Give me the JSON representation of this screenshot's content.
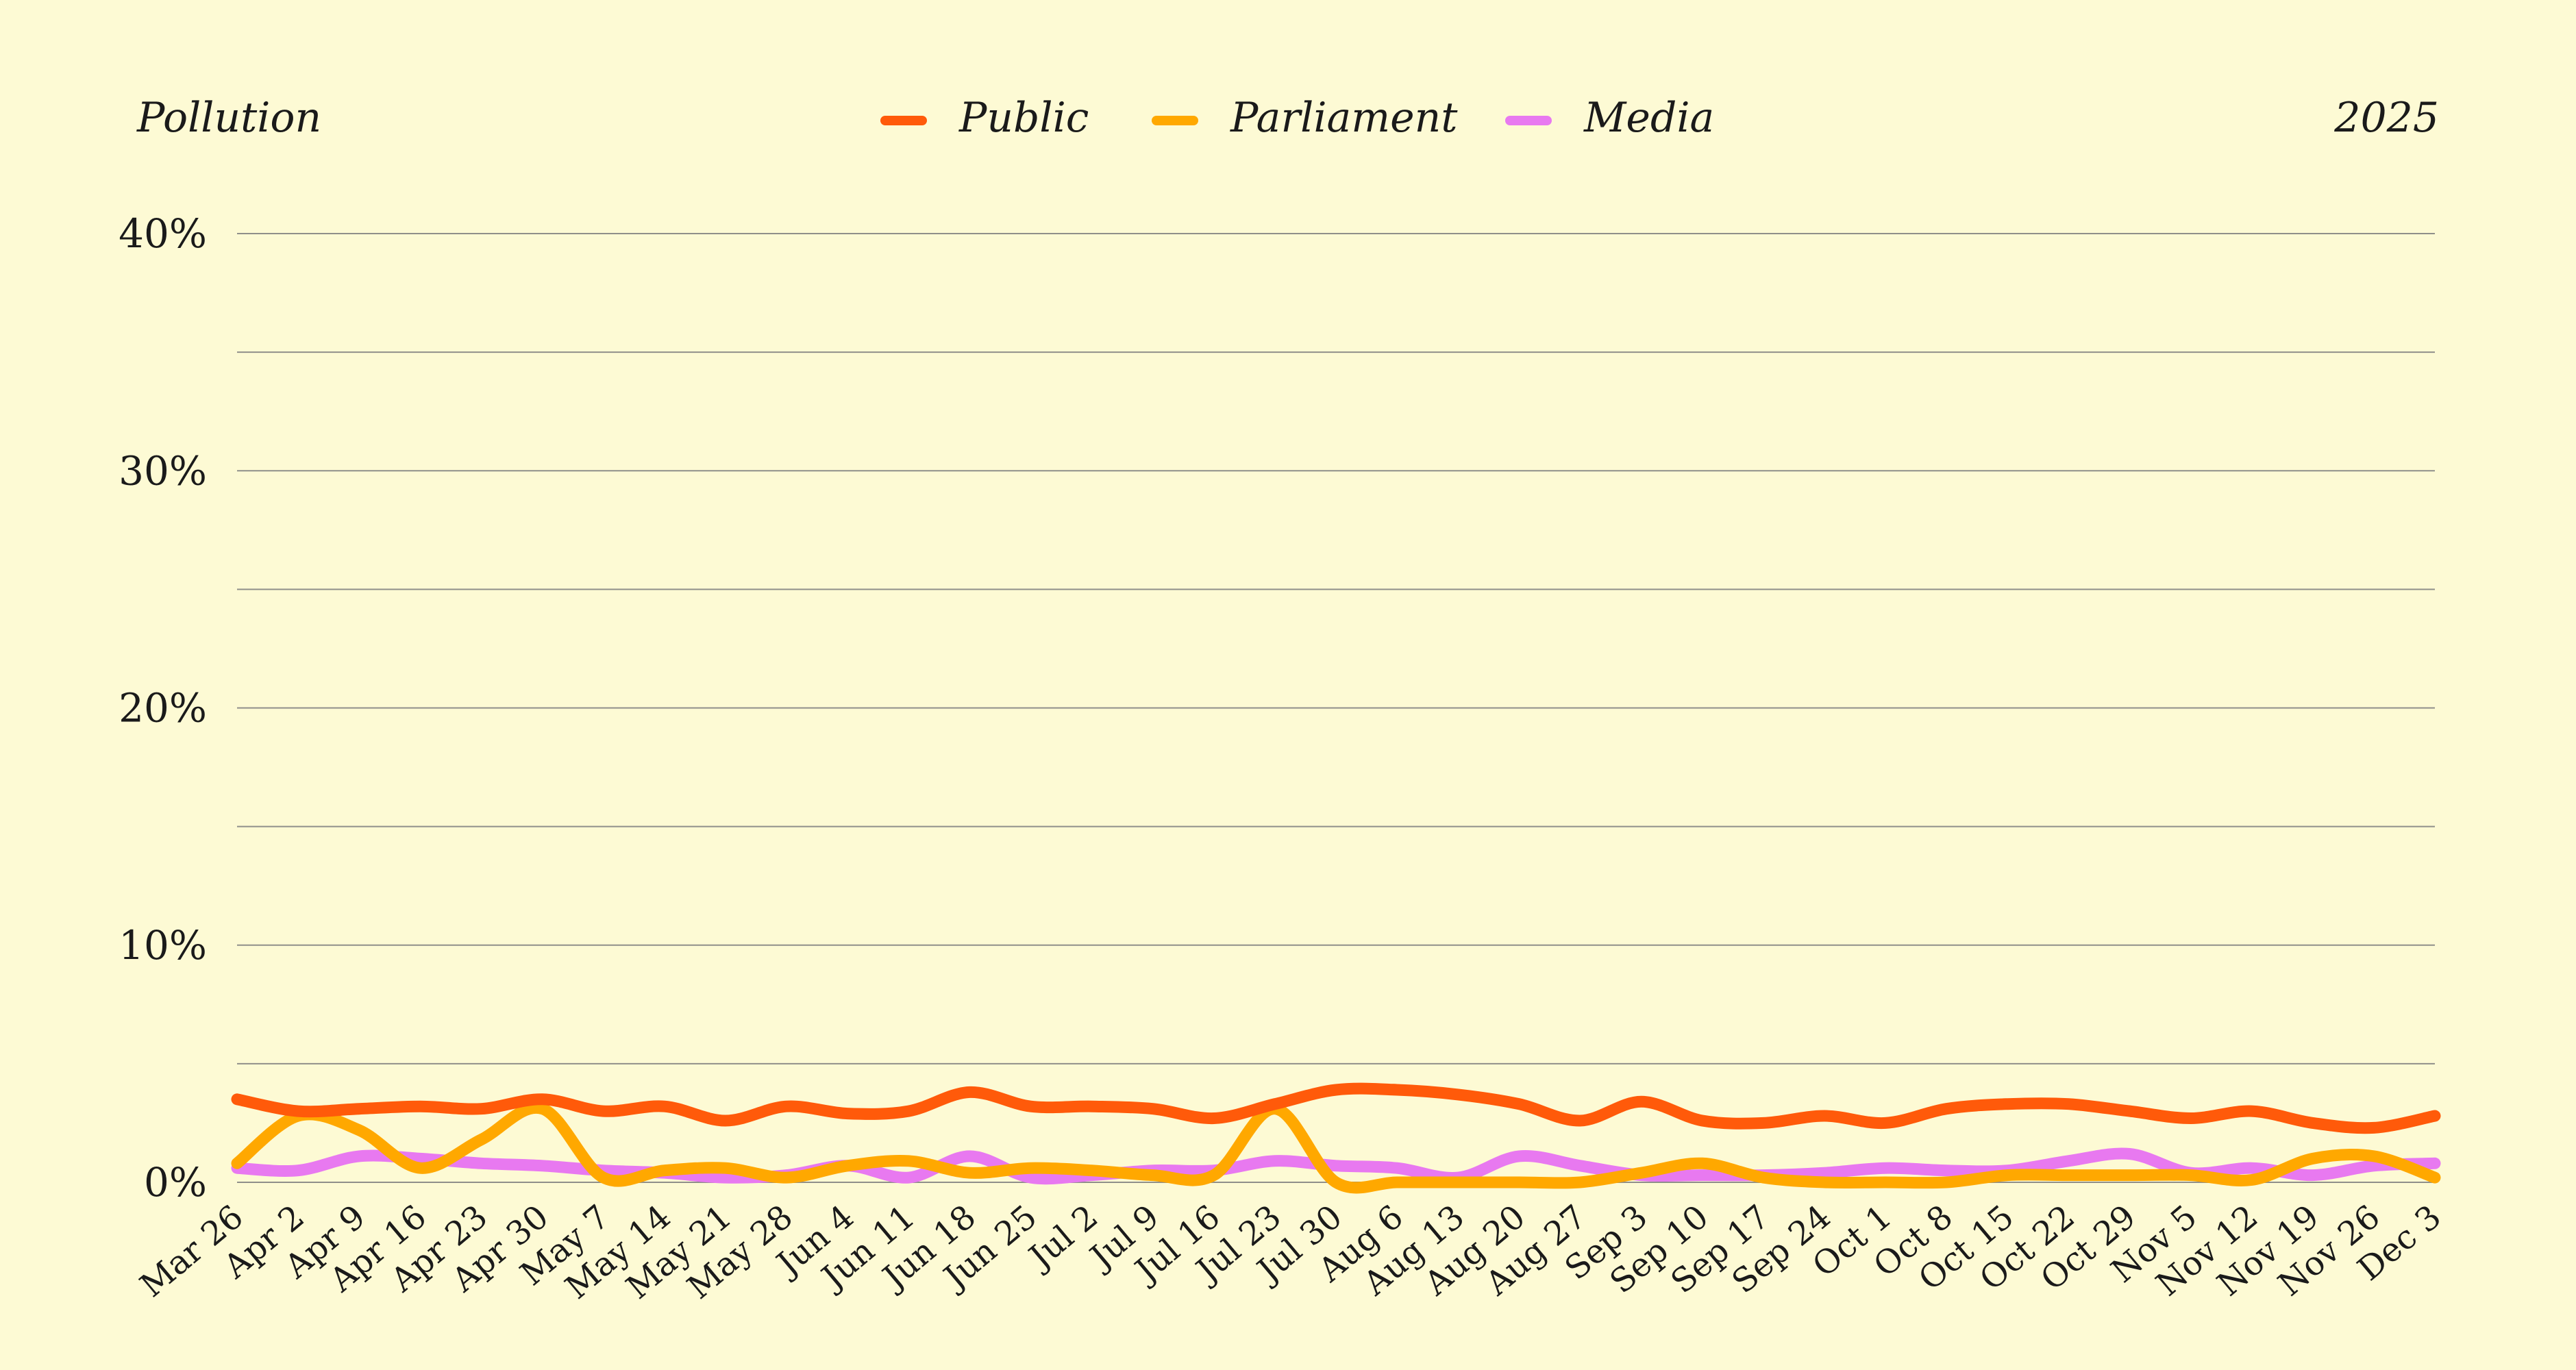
{
  "header": {
    "left_title": "Pollution",
    "right_year": "2025"
  },
  "colors": {
    "public": "#ff5a0a",
    "parliament": "#ffa800",
    "media": "#e879f0",
    "background": "#fdfad4"
  },
  "chart_data": {
    "type": "line",
    "title": "Pollution",
    "subtitle": "2025",
    "ylim": [
      0,
      40
    ],
    "ytick_values": [
      0,
      10,
      20,
      30,
      40
    ],
    "ytick_labels": [
      "0%",
      "10%",
      "20%",
      "30%",
      "40%"
    ],
    "grid": true,
    "legend_placement": "top-center",
    "categories": [
      "Mar 26",
      "Apr 2",
      "Apr 9",
      "Apr 16",
      "Apr 23",
      "Apr 30",
      "May 7",
      "May 14",
      "May 21",
      "May 28",
      "Jun 4",
      "Jun 11",
      "Jun 18",
      "Jun 25",
      "Jul 2",
      "Jul 9",
      "Jul 16",
      "Jul 23",
      "Jul 30",
      "Aug 6",
      "Aug 13",
      "Aug 20",
      "Aug 27",
      "Sep 3",
      "Sep 10",
      "Sep 17",
      "Sep 24",
      "Oct 1",
      "Oct 8",
      "Oct 15",
      "Oct 22",
      "Oct 29",
      "Nov 5",
      "Nov 12",
      "Nov 19",
      "Nov 26",
      "Dec 3"
    ],
    "series": [
      {
        "name": "Public",
        "color": "#ff5a0a",
        "values": [
          3.5,
          3.0,
          3.1,
          3.2,
          3.1,
          3.5,
          3.0,
          3.2,
          2.6,
          3.2,
          2.9,
          3.0,
          3.8,
          3.2,
          3.2,
          3.1,
          2.7,
          3.3,
          3.9,
          3.9,
          3.7,
          3.3,
          2.6,
          3.4,
          2.6,
          2.5,
          2.8,
          2.5,
          3.1,
          3.3,
          3.3,
          3.0,
          2.7,
          3.0,
          2.5,
          2.3,
          2.8
        ]
      },
      {
        "name": "Parliament",
        "color": "#ffa800",
        "values": [
          0.8,
          2.8,
          2.2,
          0.6,
          1.8,
          3.1,
          0.2,
          0.5,
          0.6,
          0.2,
          0.7,
          0.9,
          0.4,
          0.6,
          0.5,
          0.3,
          0.3,
          3.1,
          0.0,
          0.0,
          0.0,
          0.0,
          0.0,
          0.4,
          0.8,
          0.2,
          0.0,
          0.0,
          0.0,
          0.3,
          0.3,
          0.3,
          0.3,
          0.1,
          1.0,
          1.1,
          0.2
        ]
      },
      {
        "name": "Media",
        "color": "#e879f0",
        "values": [
          0.6,
          0.5,
          1.1,
          1.0,
          0.8,
          0.7,
          0.5,
          0.4,
          0.2,
          0.3,
          0.7,
          0.2,
          1.1,
          0.2,
          0.3,
          0.5,
          0.5,
          0.9,
          0.7,
          0.6,
          0.2,
          1.1,
          0.7,
          0.3,
          0.3,
          0.3,
          0.4,
          0.6,
          0.5,
          0.5,
          0.9,
          1.2,
          0.4,
          0.6,
          0.3,
          0.7,
          0.8
        ]
      }
    ]
  }
}
